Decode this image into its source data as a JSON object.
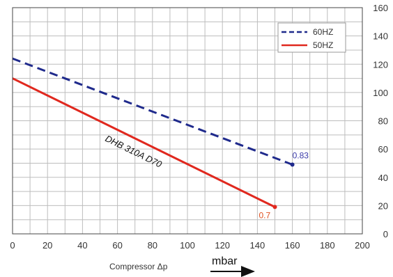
{
  "chart_data": {
    "type": "line",
    "xlabel": "Compressor Δp",
    "xunit": "mbar",
    "xlim": [
      0,
      200
    ],
    "ylim": [
      0,
      160
    ],
    "x_ticks": [
      0,
      20,
      40,
      60,
      80,
      100,
      120,
      140,
      160,
      180,
      200
    ],
    "y_ticks": [
      0,
      20,
      40,
      60,
      80,
      100,
      120,
      140,
      160
    ],
    "grid": true,
    "legend_position": "top-right",
    "curve_label": "DHB 310A D70",
    "series": [
      {
        "name": "60HZ",
        "color": "#1f2a8c",
        "dash": true,
        "x": [
          0,
          160
        ],
        "y": [
          124,
          49
        ],
        "end_label": "0.83",
        "end_label_color": "#3a3aa8"
      },
      {
        "name": "50HZ",
        "color": "#e0281e",
        "dash": false,
        "x": [
          0,
          150
        ],
        "y": [
          110,
          19
        ],
        "end_label": "0.7",
        "end_label_color": "#e05020"
      }
    ]
  }
}
